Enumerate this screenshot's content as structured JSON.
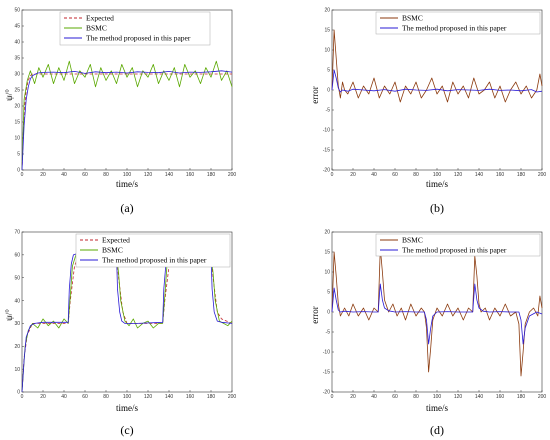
{
  "colors": {
    "expected": "#c0262d",
    "bsmc_a": "#5aa800",
    "bsmc_b": "#8b3a0e",
    "proposed": "#2a1bd6"
  },
  "chart_data": [
    {
      "panel": "(a)",
      "type": "line",
      "xlabel": "time/s",
      "ylabel": "ψ/°",
      "xlim": [
        0,
        200
      ],
      "ylim": [
        0,
        50
      ],
      "xticks": [
        0,
        20,
        40,
        60,
        80,
        100,
        120,
        140,
        160,
        180,
        200
      ],
      "yticks": [
        0,
        5,
        10,
        15,
        20,
        25,
        30,
        35,
        40,
        45,
        50
      ],
      "legend_position": "top-left",
      "series": [
        {
          "name": "Expected",
          "style": "dashed",
          "color": "#c0262d",
          "x": [
            0,
            1,
            2,
            4,
            6,
            8,
            10,
            15,
            20,
            200
          ],
          "y": [
            0,
            10,
            18,
            25,
            28,
            29.5,
            30,
            30,
            30,
            30
          ]
        },
        {
          "name": "BSMC",
          "style": "solid",
          "color": "#5aa800",
          "x": [
            0,
            2,
            5,
            8,
            12,
            16,
            20,
            25,
            30,
            35,
            40,
            45,
            50,
            55,
            60,
            65,
            70,
            75,
            80,
            85,
            90,
            95,
            100,
            105,
            110,
            115,
            120,
            125,
            130,
            135,
            140,
            145,
            150,
            155,
            160,
            165,
            170,
            175,
            180,
            185,
            190,
            195,
            200
          ],
          "y": [
            0,
            22,
            28,
            31,
            27,
            32,
            29,
            33,
            27,
            32,
            28,
            34,
            27,
            31,
            29,
            33,
            26,
            32,
            28,
            31,
            27,
            33,
            29,
            32,
            26,
            31,
            29,
            33,
            27,
            31,
            28,
            32,
            26,
            33,
            29,
            31,
            27,
            32,
            29,
            34,
            28,
            31,
            26
          ]
        },
        {
          "name": "The method proposed in this paper",
          "style": "solid",
          "color": "#2a1bd6",
          "x": [
            0,
            2,
            4,
            6,
            8,
            10,
            15,
            20,
            30,
            40,
            50,
            60,
            70,
            80,
            90,
            100,
            110,
            120,
            130,
            140,
            150,
            160,
            170,
            180,
            190,
            200
          ],
          "y": [
            0,
            14,
            22,
            26,
            28.5,
            29.5,
            30.3,
            30.5,
            30.6,
            30.4,
            30.8,
            30.2,
            30.7,
            30.4,
            30.6,
            30.3,
            30.7,
            30.5,
            30.4,
            30.8,
            30.3,
            30.6,
            30.5,
            30.7,
            31,
            30.6
          ]
        }
      ]
    },
    {
      "panel": "(b)",
      "type": "line",
      "xlabel": "time/s",
      "ylabel": "error",
      "xlim": [
        0,
        200
      ],
      "ylim": [
        -20,
        20
      ],
      "xticks": [
        0,
        20,
        40,
        60,
        80,
        100,
        120,
        140,
        160,
        180,
        200
      ],
      "yticks": [
        -20,
        -15,
        -10,
        -5,
        0,
        5,
        10,
        15,
        20
      ],
      "legend_position": "top-right",
      "series": [
        {
          "name": "BSMC",
          "style": "solid",
          "color": "#8b3a0e",
          "x": [
            0,
            2,
            4,
            6,
            8,
            10,
            12,
            15,
            20,
            25,
            30,
            35,
            40,
            45,
            50,
            55,
            60,
            65,
            70,
            75,
            80,
            85,
            90,
            95,
            100,
            105,
            110,
            115,
            120,
            125,
            130,
            135,
            140,
            145,
            150,
            155,
            160,
            165,
            170,
            175,
            180,
            185,
            190,
            195,
            198,
            200
          ],
          "y": [
            0,
            15,
            8,
            1,
            -2,
            2,
            0,
            -1,
            2,
            -2,
            1,
            -1,
            3,
            -2,
            1,
            -1,
            2,
            -3,
            1,
            -1,
            2,
            -2,
            0,
            3,
            -1,
            1,
            -3,
            2,
            -1,
            1,
            -2,
            3,
            -1,
            0,
            2,
            -2,
            1,
            -3,
            0,
            2,
            -1,
            1,
            -2,
            0,
            4,
            1
          ]
        },
        {
          "name": "The method proposed in this paper",
          "style": "solid",
          "color": "#2a1bd6",
          "x": [
            0,
            2,
            4,
            6,
            8,
            10,
            15,
            20,
            30,
            40,
            50,
            60,
            70,
            80,
            90,
            100,
            110,
            120,
            130,
            140,
            150,
            160,
            170,
            180,
            190,
            195,
            200
          ],
          "y": [
            0,
            5,
            3,
            0.5,
            -0.5,
            0,
            -0.3,
            0.2,
            0,
            -0.2,
            0.1,
            -0.3,
            0.2,
            0,
            -0.1,
            0.2,
            -0.2,
            0.1,
            0,
            -0.1,
            0.2,
            -0.1,
            0,
            -0.2,
            0.1,
            -0.5,
            -0.3
          ]
        }
      ]
    },
    {
      "panel": "(c)",
      "type": "line",
      "xlabel": "time/s",
      "ylabel": "ψ/°",
      "xlim": [
        0,
        200
      ],
      "ylim": [
        0,
        70
      ],
      "xticks": [
        0,
        20,
        40,
        60,
        80,
        100,
        120,
        140,
        160,
        180,
        200
      ],
      "yticks": [
        0,
        10,
        20,
        30,
        40,
        50,
        60,
        70
      ],
      "legend_position": "top-right",
      "series": [
        {
          "name": "Expected",
          "style": "dashed",
          "color": "#c0262d",
          "x": [
            0,
            2,
            5,
            10,
            44,
            46,
            50,
            54,
            90,
            92,
            96,
            100,
            134,
            136,
            140,
            144,
            180,
            182,
            186,
            190,
            200
          ],
          "y": [
            0,
            15,
            25,
            30,
            30,
            40,
            55,
            60,
            60,
            50,
            35,
            30,
            30,
            40,
            55,
            60,
            60,
            50,
            35,
            32,
            30
          ]
        },
        {
          "name": "BSMC",
          "style": "solid",
          "color": "#5aa800",
          "x": [
            0,
            3,
            6,
            10,
            15,
            20,
            25,
            30,
            35,
            40,
            44,
            46,
            48,
            52,
            56,
            60,
            65,
            70,
            75,
            80,
            85,
            90,
            92,
            94,
            98,
            102,
            106,
            110,
            115,
            120,
            125,
            130,
            134,
            136,
            138,
            142,
            146,
            150,
            155,
            160,
            165,
            170,
            175,
            180,
            182,
            184,
            188,
            192,
            196,
            200
          ],
          "y": [
            0,
            20,
            27,
            30,
            28,
            32,
            29,
            31,
            28,
            32,
            30,
            42,
            55,
            61,
            59,
            61,
            58,
            62,
            59,
            61,
            58,
            60,
            52,
            40,
            31,
            29,
            32,
            28,
            30,
            31,
            28,
            30,
            30,
            42,
            55,
            62,
            60,
            63,
            58,
            62,
            59,
            61,
            60,
            60,
            52,
            40,
            31,
            30,
            29,
            31
          ]
        },
        {
          "name": "The method proposed in this paper",
          "style": "solid",
          "color": "#2a1bd6",
          "x": [
            0,
            2,
            4,
            8,
            12,
            20,
            44,
            45,
            47,
            49,
            52,
            60,
            90,
            91,
            93,
            95,
            98,
            110,
            134,
            135,
            137,
            139,
            142,
            150,
            180,
            181,
            183,
            186,
            190,
            200
          ],
          "y": [
            0,
            14,
            24,
            29,
            30,
            30.5,
            30.5,
            45,
            56,
            60,
            60.5,
            60.5,
            60.5,
            45,
            35,
            31,
            30,
            30,
            30.5,
            45,
            56,
            60,
            61,
            61,
            60.5,
            45,
            35,
            31,
            30.5,
            30
          ]
        }
      ]
    },
    {
      "panel": "(d)",
      "type": "line",
      "xlabel": "time/s",
      "ylabel": "error",
      "xlim": [
        0,
        200
      ],
      "ylim": [
        -20,
        20
      ],
      "xticks": [
        0,
        20,
        40,
        60,
        80,
        100,
        120,
        140,
        160,
        180,
        200
      ],
      "yticks": [
        -20,
        -15,
        -10,
        -5,
        0,
        5,
        10,
        15,
        20
      ],
      "legend_position": "top-right",
      "series": [
        {
          "name": "BSMC",
          "style": "solid",
          "color": "#8b3a0e",
          "x": [
            0,
            2,
            4,
            6,
            8,
            12,
            16,
            20,
            25,
            30,
            35,
            40,
            44,
            46,
            48,
            50,
            54,
            58,
            62,
            66,
            70,
            75,
            80,
            85,
            88,
            90,
            92,
            94,
            96,
            100,
            105,
            110,
            115,
            120,
            125,
            130,
            134,
            136,
            138,
            140,
            142,
            146,
            150,
            155,
            160,
            165,
            170,
            175,
            178,
            180,
            182,
            184,
            188,
            192,
            196,
            198,
            200
          ],
          "y": [
            0,
            15,
            9,
            2,
            -1,
            1,
            -1,
            2,
            -1,
            1,
            -2,
            1,
            0,
            16,
            10,
            3,
            0,
            2,
            -1,
            1,
            -2,
            2,
            -1,
            1,
            0,
            -4,
            -15,
            -9,
            -2,
            1,
            -1,
            2,
            -1,
            1,
            -2,
            1,
            0,
            14,
            9,
            2,
            0,
            1,
            -2,
            1,
            -1,
            2,
            -1,
            0,
            -3,
            -16,
            -10,
            -3,
            0,
            1,
            -1,
            4,
            1
          ]
        },
        {
          "name": "The method proposed in this paper",
          "style": "solid",
          "color": "#2a1bd6",
          "x": [
            0,
            2,
            4,
            6,
            8,
            12,
            20,
            30,
            40,
            44,
            46,
            48,
            50,
            54,
            60,
            70,
            80,
            88,
            90,
            92,
            94,
            96,
            100,
            110,
            120,
            130,
            134,
            136,
            138,
            140,
            144,
            150,
            160,
            170,
            178,
            180,
            182,
            184,
            188,
            195,
            200
          ],
          "y": [
            0,
            6,
            3,
            0.5,
            0,
            0.2,
            0,
            0.1,
            0,
            0,
            7,
            3,
            1,
            0.3,
            0,
            0.1,
            0,
            0,
            -2,
            -8,
            -4,
            -1,
            0,
            0.1,
            0,
            0,
            0,
            7,
            3,
            1,
            0.2,
            0,
            0.1,
            0,
            0,
            -2,
            -8,
            -4,
            -1,
            0,
            -0.5
          ]
        }
      ]
    }
  ],
  "panels": [
    {
      "id": "a",
      "label": "(a)",
      "xlabel": "time/s",
      "ylabel": "ψ/°",
      "legend": [
        "Expected",
        "BSMC",
        "The method proposed in this paper"
      ]
    },
    {
      "id": "b",
      "label": "(b)",
      "xlabel": "time/s",
      "ylabel": "error",
      "legend": [
        "BSMC",
        "The method proposed in this paper"
      ]
    },
    {
      "id": "c",
      "label": "(c)",
      "xlabel": "time/s",
      "ylabel": "ψ/°",
      "legend": [
        "Expected",
        "BSMC",
        "The method proposed in this paper"
      ]
    },
    {
      "id": "d",
      "label": "(d)",
      "xlabel": "time/s",
      "ylabel": "error",
      "legend": [
        "BSMC",
        "The method proposed in this paper"
      ]
    }
  ]
}
